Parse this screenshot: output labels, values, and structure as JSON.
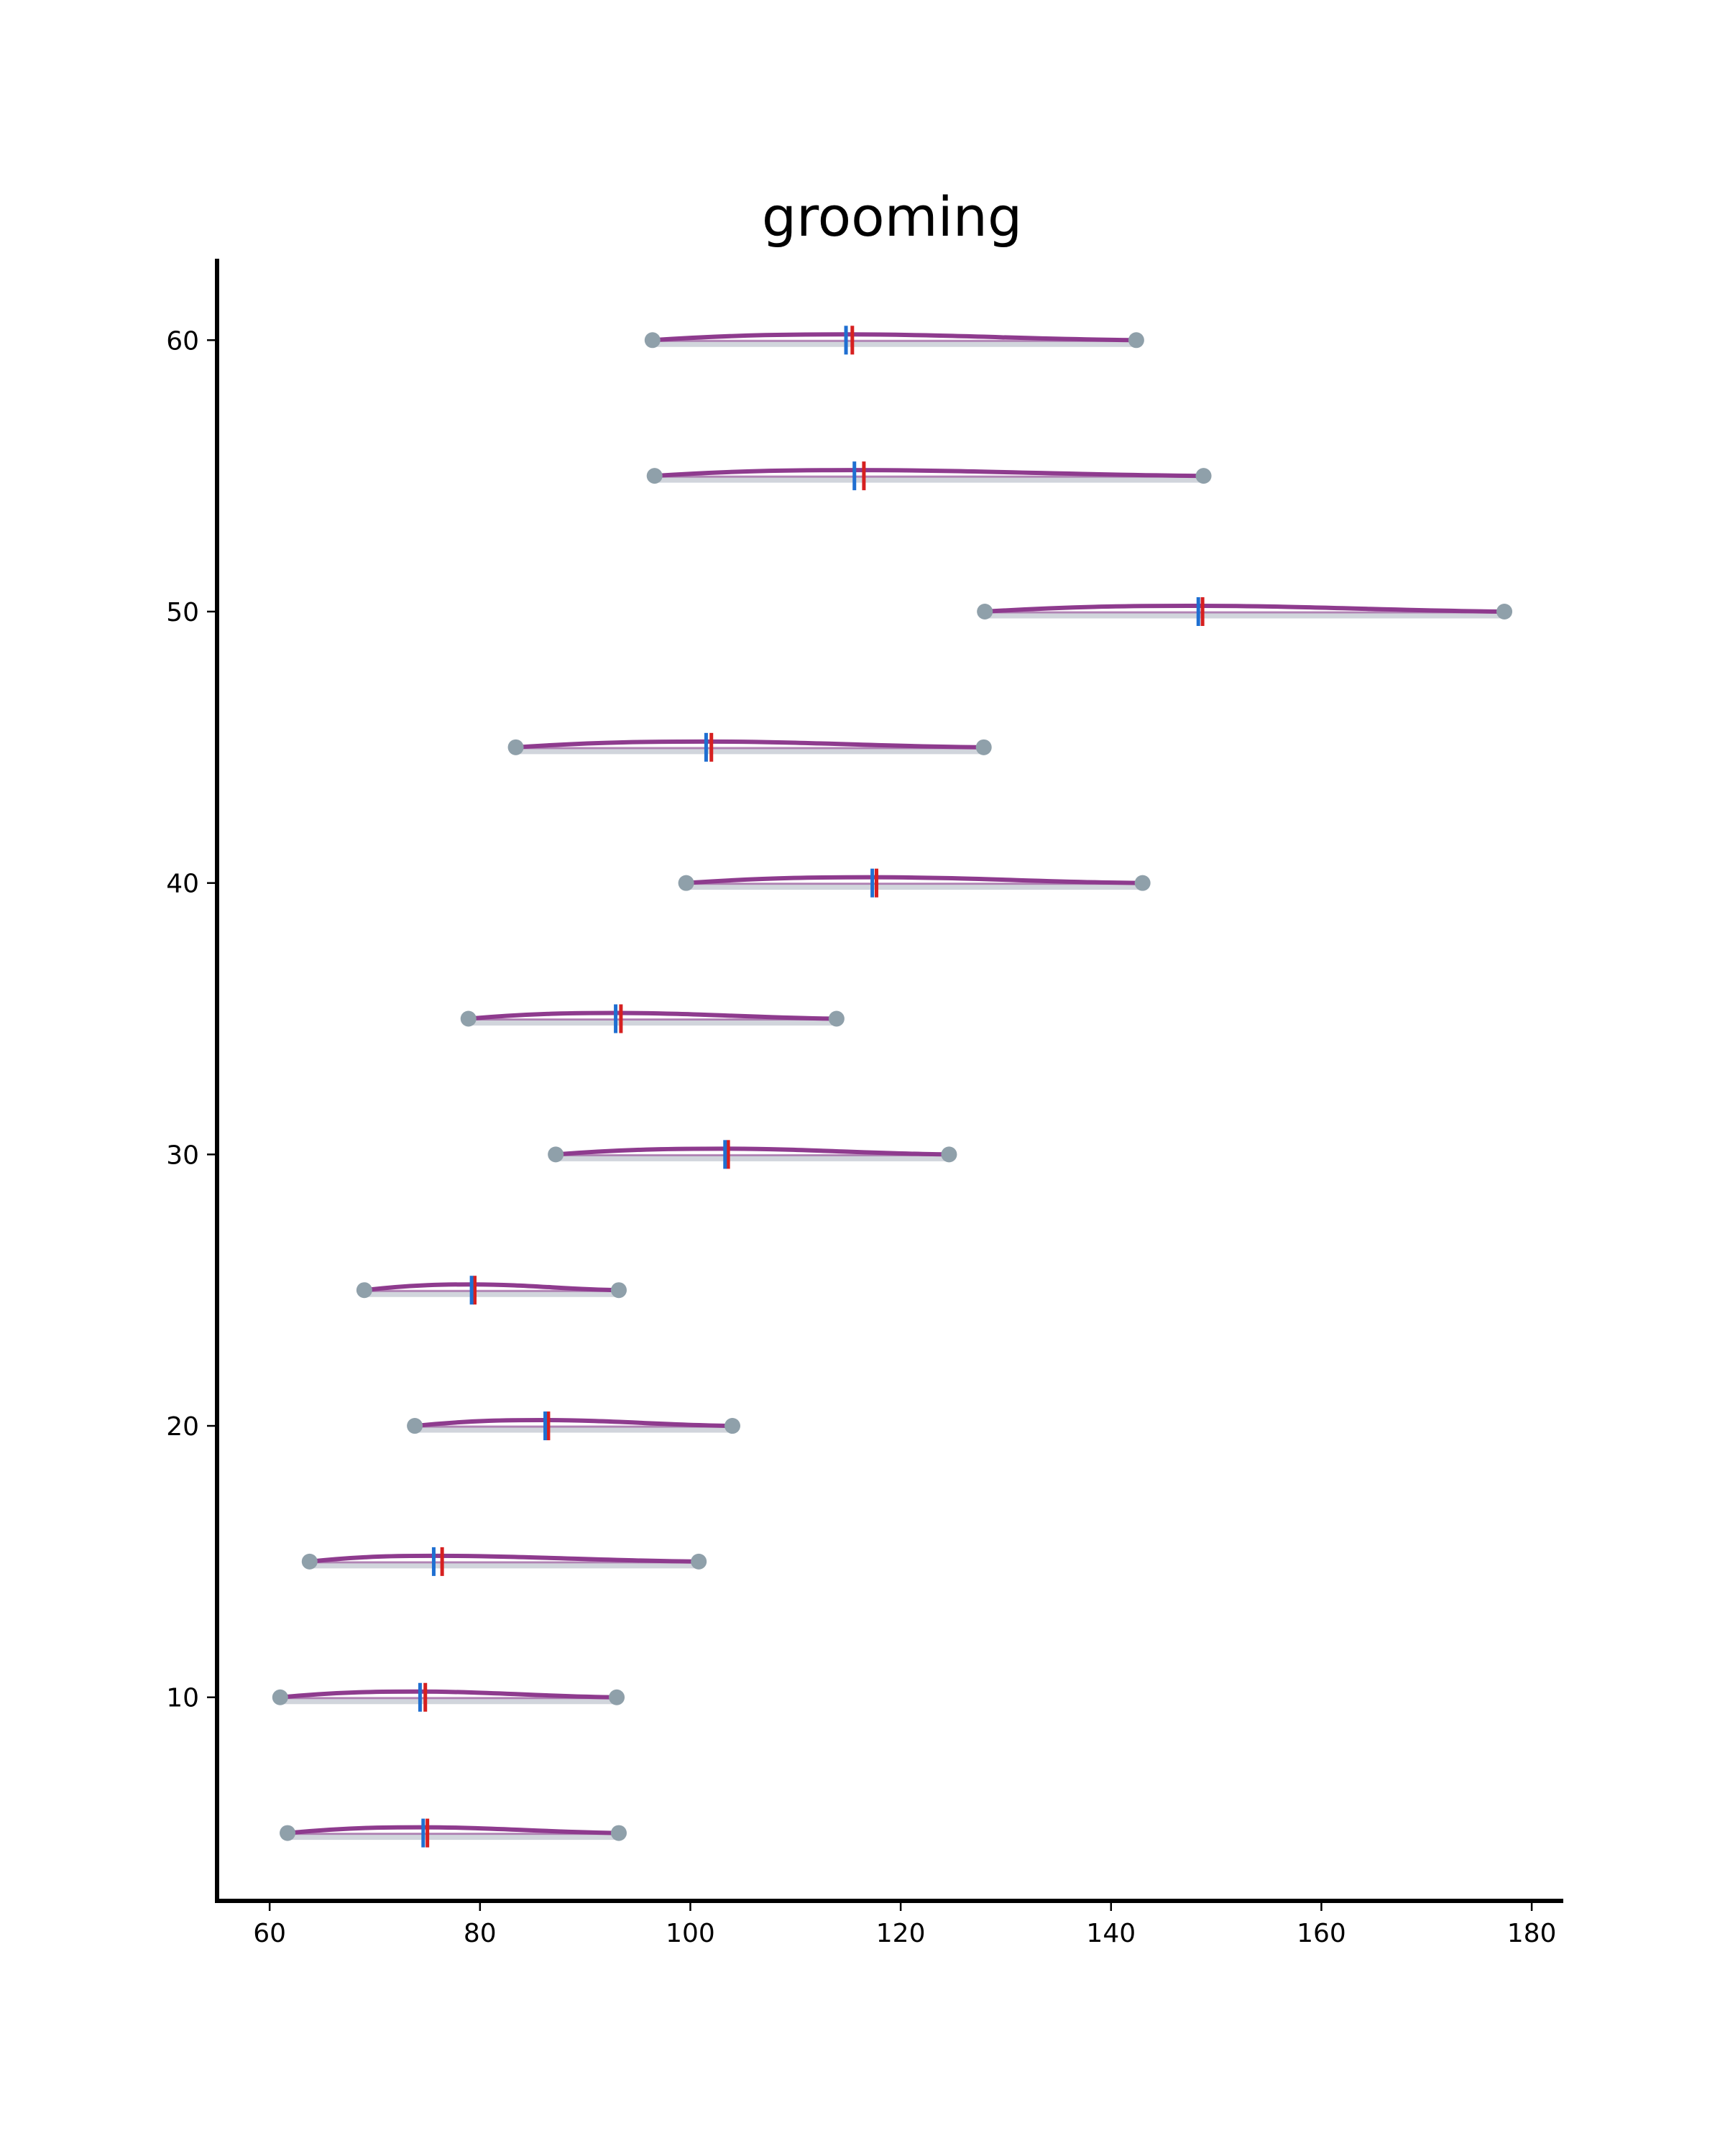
{
  "chart_data": {
    "type": "line",
    "title": "grooming",
    "xlabel": "",
    "ylabel": "",
    "xlim": [
      55,
      183
    ],
    "ylim": [
      2.5,
      63
    ],
    "x_ticks": [
      60,
      80,
      100,
      120,
      140,
      160,
      180
    ],
    "y_ticks": [
      10,
      20,
      30,
      40,
      50,
      60
    ],
    "grid": false,
    "legend": "none",
    "colors": {
      "range_line": "#c9ced6",
      "curve": "#8e3b8e",
      "endpoint": "#8fa0aa",
      "marker_blue": "#1f6fd1",
      "marker_red": "#d62020"
    },
    "rows": [
      {
        "y": 5,
        "min": 61.7,
        "max": 93.2,
        "peak": 74.5,
        "blue": 74.6,
        "red": 75.0
      },
      {
        "y": 10,
        "min": 61.0,
        "max": 93.0,
        "peak": 74.0,
        "blue": 74.3,
        "red": 74.8
      },
      {
        "y": 15,
        "min": 63.8,
        "max": 100.8,
        "peak": 75.5,
        "blue": 75.6,
        "red": 76.4
      },
      {
        "y": 20,
        "min": 73.8,
        "max": 104.0,
        "peak": 86.0,
        "blue": 86.2,
        "red": 86.5
      },
      {
        "y": 25,
        "min": 69.0,
        "max": 93.2,
        "peak": 79.5,
        "blue": 79.2,
        "red": 79.5
      },
      {
        "y": 30,
        "min": 87.2,
        "max": 124.6,
        "peak": 103.3,
        "blue": 103.3,
        "red": 103.6
      },
      {
        "y": 35,
        "min": 78.9,
        "max": 113.9,
        "peak": 93.1,
        "blue": 92.9,
        "red": 93.4
      },
      {
        "y": 40,
        "min": 99.6,
        "max": 143.0,
        "peak": 117.4,
        "blue": 117.3,
        "red": 117.7
      },
      {
        "y": 45,
        "min": 83.4,
        "max": 127.9,
        "peak": 101.6,
        "blue": 101.5,
        "red": 102.0
      },
      {
        "y": 50,
        "min": 128.0,
        "max": 177.4,
        "peak": 148.3,
        "blue": 148.3,
        "red": 148.7
      },
      {
        "y": 55,
        "min": 96.6,
        "max": 148.8,
        "peak": 115.6,
        "blue": 115.6,
        "red": 116.5
      },
      {
        "y": 60,
        "min": 96.4,
        "max": 142.4,
        "peak": 114.9,
        "blue": 114.8,
        "red": 115.4
      }
    ]
  }
}
